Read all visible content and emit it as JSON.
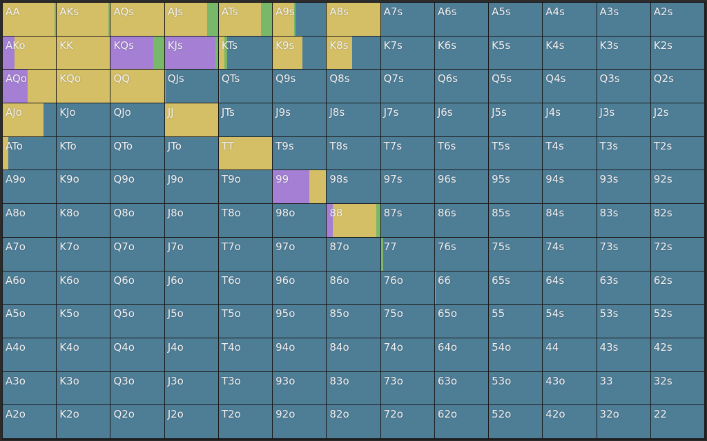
{
  "colors": {
    "fold": "#4e7d96",
    "call": "#d4bf66",
    "raise": "#a47fd3",
    "allin": "#79b86b"
  },
  "hands": [
    [
      "AA",
      "AKs",
      "AQs",
      "AJs",
      "ATs",
      "A9s",
      "A8s",
      "A7s",
      "A6s",
      "A5s",
      "A4s",
      "A3s",
      "A2s"
    ],
    [
      "AKo",
      "KK",
      "KQs",
      "KJs",
      "KTs",
      "K9s",
      "K8s",
      "K7s",
      "K6s",
      "K5s",
      "K4s",
      "K3s",
      "K2s"
    ],
    [
      "AQo",
      "KQo",
      "QQ",
      "QJs",
      "QTs",
      "Q9s",
      "Q8s",
      "Q7s",
      "Q6s",
      "Q5s",
      "Q4s",
      "Q3s",
      "Q2s"
    ],
    [
      "AJo",
      "KJo",
      "QJo",
      "JJ",
      "JTs",
      "J9s",
      "J8s",
      "J7s",
      "J6s",
      "J5s",
      "J4s",
      "J3s",
      "J2s"
    ],
    [
      "ATo",
      "KTo",
      "QTo",
      "JTo",
      "TT",
      "T9s",
      "T8s",
      "T7s",
      "T6s",
      "T5s",
      "T4s",
      "T3s",
      "T2s"
    ],
    [
      "A9o",
      "K9o",
      "Q9o",
      "J9o",
      "T9o",
      "99",
      "98s",
      "97s",
      "96s",
      "95s",
      "94s",
      "93s",
      "92s"
    ],
    [
      "A8o",
      "K8o",
      "Q8o",
      "J8o",
      "T8o",
      "98o",
      "88",
      "87s",
      "86s",
      "85s",
      "84s",
      "83s",
      "82s"
    ],
    [
      "A7o",
      "K7o",
      "Q7o",
      "J7o",
      "T7o",
      "97o",
      "87o",
      "77",
      "76s",
      "75s",
      "74s",
      "73s",
      "72s"
    ],
    [
      "A6o",
      "K6o",
      "Q6o",
      "J6o",
      "T6o",
      "96o",
      "86o",
      "76o",
      "66",
      "65s",
      "64s",
      "63s",
      "62s"
    ],
    [
      "A5o",
      "K5o",
      "Q5o",
      "J5o",
      "T5o",
      "95o",
      "85o",
      "75o",
      "65o",
      "55",
      "54s",
      "53s",
      "52s"
    ],
    [
      "A4o",
      "K4o",
      "Q4o",
      "J4o",
      "T4o",
      "94o",
      "84o",
      "74o",
      "64o",
      "54o",
      "44",
      "43s",
      "42s"
    ],
    [
      "A3o",
      "K3o",
      "Q3o",
      "J3o",
      "T3o",
      "93o",
      "83o",
      "73o",
      "63o",
      "53o",
      "43o",
      "33",
      "32s"
    ],
    [
      "A2o",
      "K2o",
      "Q2o",
      "J2o",
      "T2o",
      "92o",
      "82o",
      "72o",
      "62o",
      "52o",
      "42o",
      "32o",
      "22"
    ]
  ],
  "frequencies": {
    "AA": {
      "call": 0.97,
      "allin": 0.03
    },
    "AKs": {
      "call": 0.97,
      "allin": 0.03
    },
    "AQs": {
      "call": 1.0
    },
    "AJs": {
      "call": 0.79,
      "allin": 0.21
    },
    "ATs": {
      "call": 0.79,
      "allin": 0.21
    },
    "A9s": {
      "call": 0.4,
      "allin": 0.03
    },
    "A8s": {
      "call": 1.0
    },
    "AKo": {
      "raise": 0.22,
      "call": 0.78
    },
    "KK": {
      "call": 1.0
    },
    "KQs": {
      "raise": 0.8,
      "allin": 0.2
    },
    "KJs": {
      "raise": 0.95,
      "allin": 0.05
    },
    "KTs": {
      "call": 0.1,
      "allin": 0.05
    },
    "K9s": {
      "call": 0.55
    },
    "K8s": {
      "call": 0.48
    },
    "AQo": {
      "raise": 0.47,
      "call": 0.53
    },
    "KQo": {
      "call": 1.0
    },
    "QQ": {
      "call": 1.0
    },
    "QJs": {
      "allin": 0.02
    },
    "QTs": {
      "allin": 0.02
    },
    "AJo": {
      "call": 0.77
    },
    "JJ": {
      "call": 1.0
    },
    "ATo": {
      "call": 0.1
    },
    "TT": {
      "call": 1.0
    },
    "99": {
      "raise": 0.68,
      "call": 0.32
    },
    "88": {
      "raise": 0.11,
      "call": 0.82,
      "allin": 0.07
    },
    "77": {
      "allin": 0.05
    },
    "66": {
      "allin": 0.02
    }
  }
}
